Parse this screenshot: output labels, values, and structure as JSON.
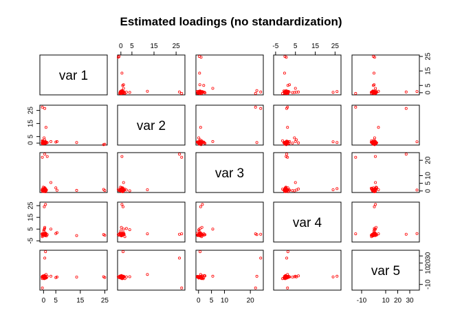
{
  "chart_data": {
    "type": "scatter",
    "subtype": "scatterplot-matrix",
    "title": "Estimated loadings (no standardization)",
    "point_color": "#ff0000",
    "variables": [
      "var 1",
      "var 2",
      "var 3",
      "var 4",
      "var 5"
    ],
    "axes": [
      {
        "range": [
          -1.5,
          26
        ],
        "ticks": [
          0,
          5,
          15,
          25
        ]
      },
      {
        "range": [
          -1.5,
          29
        ],
        "ticks": [
          0,
          5,
          15,
          25
        ]
      },
      {
        "range": [
          -1,
          25
        ],
        "ticks": [
          0,
          5,
          10,
          20
        ]
      },
      {
        "range": [
          -6,
          28
        ],
        "ticks": [
          -5,
          5,
          15,
          25
        ]
      },
      {
        "range": [
          -18,
          38
        ],
        "ticks": [
          -10,
          10,
          20,
          30
        ]
      }
    ],
    "observations": [
      [
        0,
        0,
        0,
        0,
        0
      ],
      [
        0.2,
        -0.3,
        0.5,
        0.3,
        -0.2
      ],
      [
        -0.3,
        0.4,
        -0.2,
        -0.4,
        0.3
      ],
      [
        0.5,
        0.2,
        0.3,
        0.6,
        -0.5
      ],
      [
        -0.1,
        0.6,
        0.8,
        0.2,
        0.8
      ],
      [
        0.8,
        -0.2,
        0.1,
        -0.2,
        -1.0
      ],
      [
        -0.6,
        0.1,
        0.4,
        0.9,
        0.5
      ],
      [
        0.3,
        0.9,
        -0.4,
        0.1,
        1.2
      ],
      [
        0.6,
        0.4,
        1.0,
        -0.6,
        -1.5
      ],
      [
        -0.4,
        -0.5,
        0.6,
        1.2,
        1.6
      ],
      [
        1.0,
        0.7,
        0.2,
        0.4,
        -0.8
      ],
      [
        0.1,
        -0.1,
        1.2,
        -0.1,
        0.2
      ],
      [
        -0.2,
        1.1,
        0.0,
        0.7,
        -0.4
      ],
      [
        0.4,
        0.0,
        -0.1,
        -0.3,
        0.9
      ],
      [
        -0.5,
        0.3,
        0.7,
        0.0,
        -0.1
      ],
      [
        0.7,
        1.3,
        0.9,
        1.0,
        0.6
      ],
      [
        -0.4,
        0.5,
        -0.3,
        -0.5,
        1.4
      ],
      [
        0.2,
        1.0,
        1.5,
        0.5,
        -1.2
      ],
      [
        0.0,
        -0.4,
        0.3,
        0.8,
        0.1
      ],
      [
        1.2,
        0.2,
        0.6,
        -0.8,
        -0.6
      ],
      [
        0.9,
        0.8,
        -0.5,
        1.4,
        0.4
      ],
      [
        -0.1,
        -0.2,
        2.5,
        0.2,
        2.0
      ],
      [
        0.3,
        0.6,
        1.8,
        -0.2,
        -2.0
      ],
      [
        -0.3,
        1.5,
        0.4,
        0.6,
        0.7
      ],
      [
        -0.5,
        1.8,
        1.2,
        -1.5,
        -1.8
      ],
      [
        0.1,
        0.0,
        0.2,
        3.5,
        0.3
      ],
      [
        0.4,
        0.3,
        2.2,
        0.0,
        2.5
      ],
      [
        0.6,
        -0.3,
        0.8,
        1.8,
        1.0
      ],
      [
        5.5,
        1.2,
        0.5,
        2.0,
        0.4
      ],
      [
        5.0,
        0.8,
        2.0,
        1.2,
        -0.3
      ],
      [
        3.0,
        1.2,
        5.5,
        5.0,
        1.5
      ],
      [
        0.4,
        2.5,
        0.6,
        5.5,
        0.5
      ],
      [
        0.2,
        4.0,
        0.1,
        4.5,
        0.8
      ],
      [
        13.5,
        0.5,
        0.4,
        -0.5,
        0.3
      ],
      [
        0.5,
        0.2,
        1.3,
        6.5,
        2.0
      ],
      [
        25.0,
        -0.8,
        0.3,
        -0.3,
        -0.2
      ],
      [
        24.5,
        -1.2,
        1.0,
        0.4,
        0.8
      ],
      [
        1.0,
        12.0,
        0.8,
        1.0,
        4.0
      ],
      [
        0.5,
        26.5,
        24.0,
        0.6,
        27.0
      ],
      [
        -0.5,
        27.5,
        22.0,
        1.0,
        -15.0
      ],
      [
        0.8,
        0.5,
        1.5,
        26.0,
        1.5
      ],
      [
        0.3,
        1.0,
        0.8,
        24.0,
        0.6
      ],
      [
        1.5,
        0.5,
        22.5,
        0.3,
        1.4
      ],
      [
        0.8,
        1.0,
        0.6,
        1.2,
        36.0
      ]
    ]
  }
}
